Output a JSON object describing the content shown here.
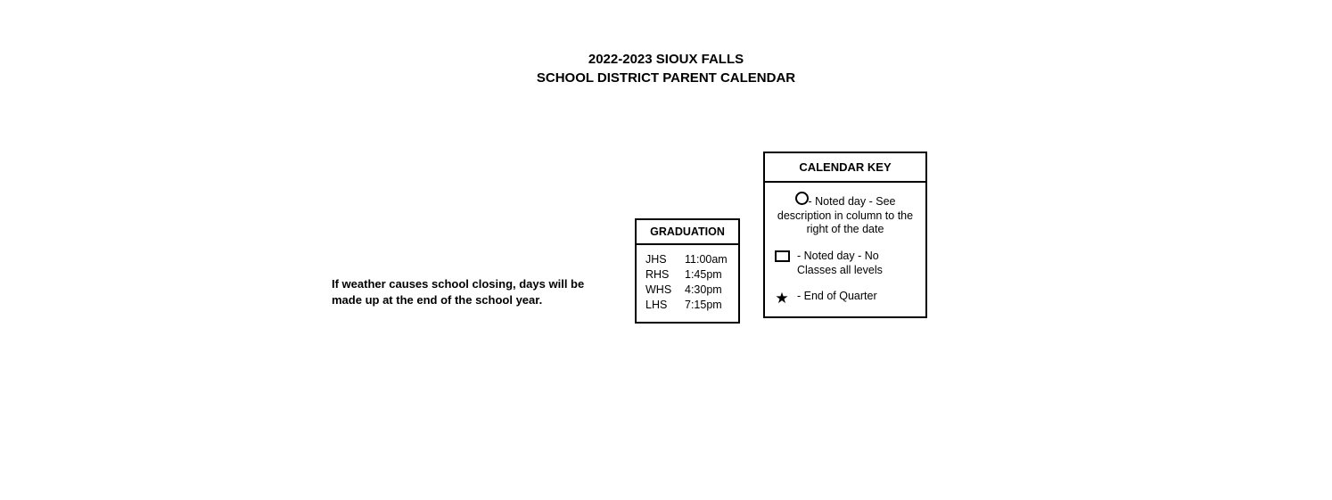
{
  "title": {
    "line1": "2022-2023 SIOUX FALLS",
    "line2": "SCHOOL DISTRICT PARENT CALENDAR"
  },
  "weather_note": "If weather causes school closing, days will be made up at the end of the school year.",
  "graduation": {
    "header": "GRADUATION",
    "rows": [
      {
        "school": "JHS",
        "time": "11:00am"
      },
      {
        "school": "RHS",
        "time": "1:45pm"
      },
      {
        "school": "WHS",
        "time": "4:30pm"
      },
      {
        "school": "LHS",
        "time": "7:15pm"
      }
    ]
  },
  "key": {
    "header": "CALENDAR KEY",
    "items": {
      "circle": "- Noted day - See description in column to the right of the date",
      "square": "- Noted day - No Classes all levels",
      "star": "- End of Quarter"
    }
  },
  "colors": {
    "text": "#000000",
    "border": "#000000",
    "background": "#ffffff"
  },
  "typography": {
    "title_fontsize": 15,
    "body_fontsize": 12.5,
    "note_fontsize": 13
  }
}
